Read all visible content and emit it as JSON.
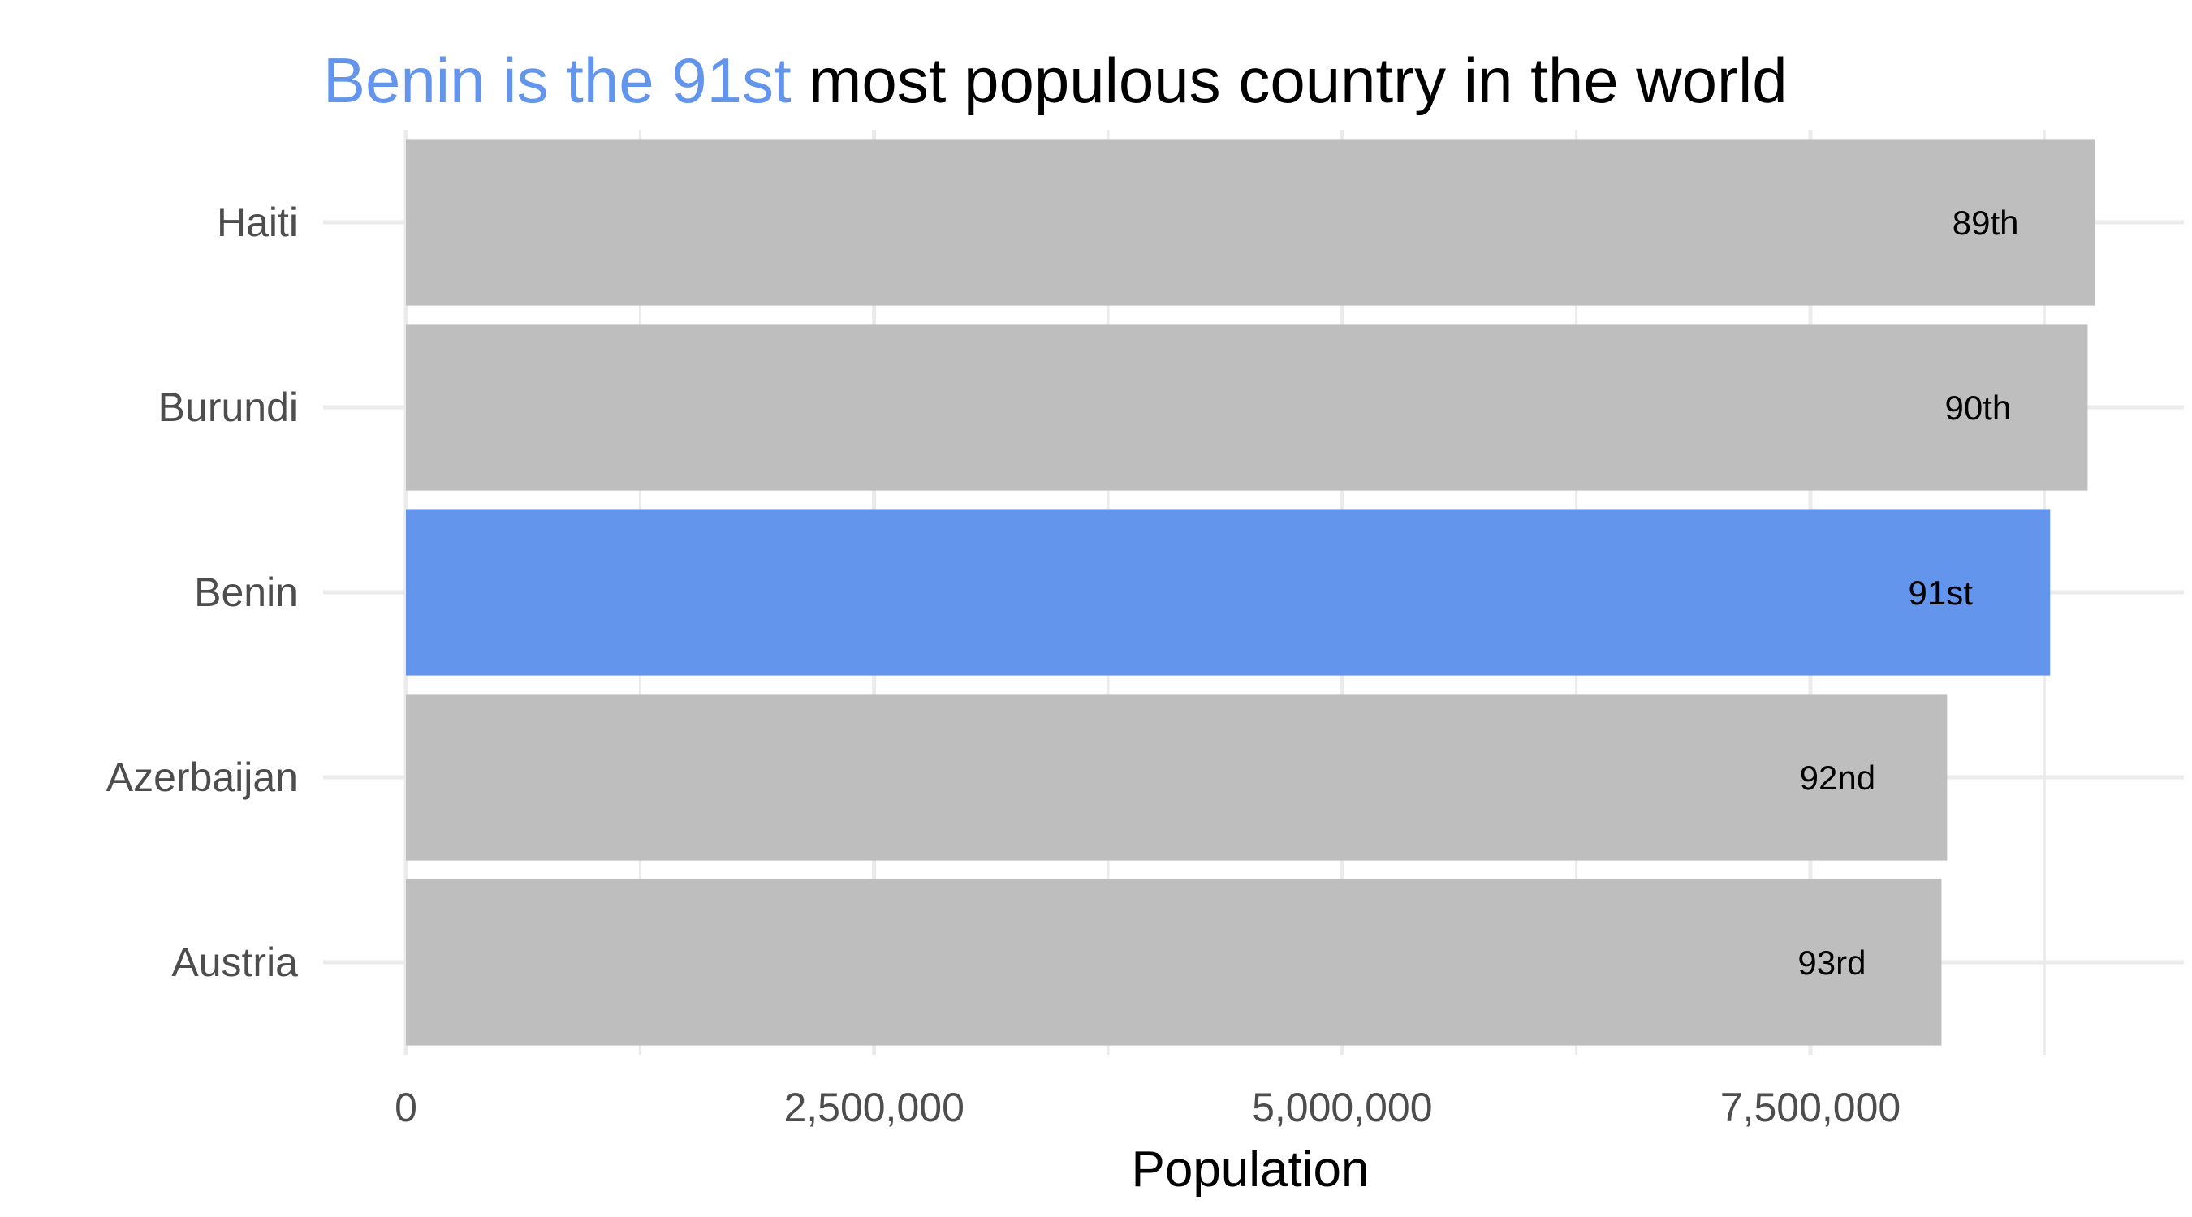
{
  "chart_data": {
    "type": "bar",
    "orientation": "horizontal",
    "title_parts": [
      {
        "text": "Benin is the 91st",
        "color": "#6495ED"
      },
      {
        "text": " most populous country in the world",
        "color": "#000000"
      }
    ],
    "xlabel": "Population",
    "ylabel": "",
    "categories": [
      "Haiti",
      "Burundi",
      "Benin",
      "Azerbaijan",
      "Austria"
    ],
    "values": [
      9020000,
      8980000,
      8780000,
      8230000,
      8200000
    ],
    "bar_labels": [
      "89th",
      "90th",
      "91st",
      "92nd",
      "93rd"
    ],
    "highlight": "Benin",
    "colors": {
      "default": "#BEBEBE",
      "highlight": "#6495ED",
      "grid": "#EBEBEB"
    },
    "xlim": [
      0,
      9500000
    ],
    "x_ticks": [
      0,
      2500000,
      5000000,
      7500000
    ],
    "x_tick_labels": [
      "0",
      "2,500,000",
      "5,000,000",
      "7,500,000"
    ],
    "grid": true,
    "legend": "none"
  }
}
